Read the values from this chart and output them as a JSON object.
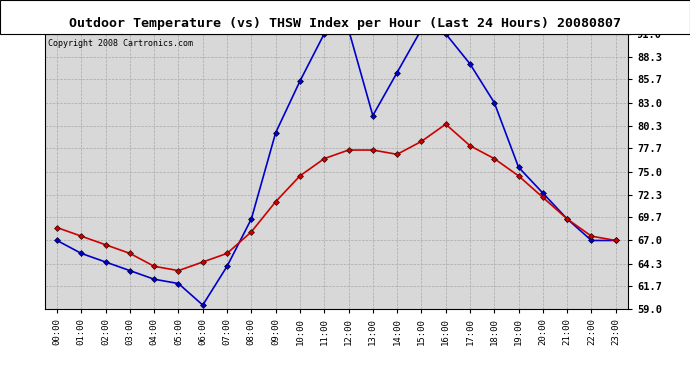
{
  "title": "Outdoor Temperature (vs) THSW Index per Hour (Last 24 Hours) 20080807",
  "copyright": "Copyright 2008 Cartronics.com",
  "hours": [
    "00:00",
    "01:00",
    "02:00",
    "03:00",
    "04:00",
    "05:00",
    "06:00",
    "07:00",
    "08:00",
    "09:00",
    "10:00",
    "11:00",
    "12:00",
    "13:00",
    "14:00",
    "15:00",
    "16:00",
    "17:00",
    "18:00",
    "19:00",
    "20:00",
    "21:00",
    "22:00",
    "23:00"
  ],
  "temp": [
    68.5,
    67.5,
    66.5,
    65.5,
    64.0,
    63.5,
    64.5,
    65.5,
    68.0,
    71.5,
    74.5,
    76.5,
    77.5,
    77.5,
    77.0,
    78.5,
    80.5,
    78.0,
    76.5,
    74.5,
    72.0,
    69.5,
    67.5,
    67.0
  ],
  "thsw": [
    67.0,
    65.5,
    64.5,
    63.5,
    62.5,
    62.0,
    59.5,
    64.0,
    69.5,
    79.5,
    85.5,
    91.0,
    91.5,
    81.5,
    86.5,
    91.5,
    91.0,
    87.5,
    83.0,
    75.5,
    72.5,
    69.5,
    67.0,
    67.0
  ],
  "ylim": [
    59.0,
    91.0
  ],
  "yticks": [
    59.0,
    61.7,
    64.3,
    67.0,
    69.7,
    72.3,
    75.0,
    77.7,
    80.3,
    83.0,
    85.7,
    88.3,
    91.0
  ],
  "temp_color": "#cc0000",
  "thsw_color": "#0000cc",
  "bg_color": "#d8d8d8",
  "grid_color": "#aaaaaa",
  "title_bg": "#ffffff",
  "marker": "D",
  "marker_size": 3,
  "linewidth": 1.2
}
